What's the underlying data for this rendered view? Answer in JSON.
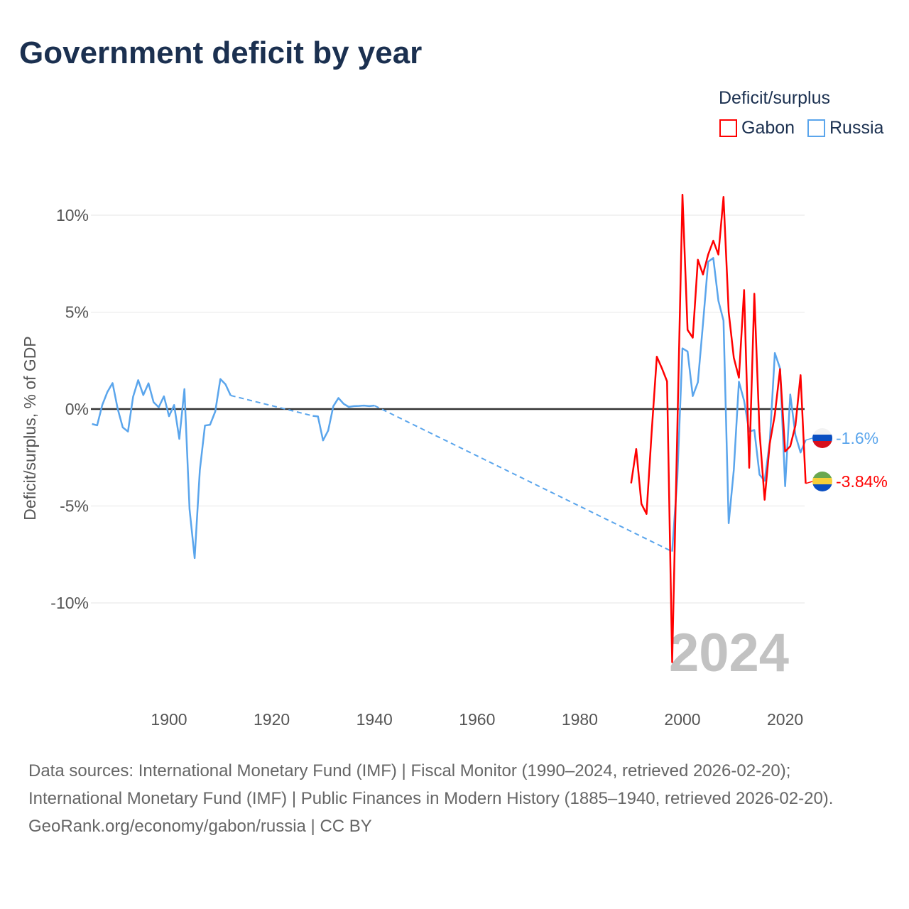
{
  "title": "Government deficit by year",
  "legend": {
    "title": "Deficit/surplus",
    "items": [
      {
        "label": "Gabon",
        "color": "#ff0000"
      },
      {
        "label": "Russia",
        "color": "#5aa5ec"
      }
    ]
  },
  "year_label": "2024",
  "end_labels": {
    "russia": "-1.6%",
    "gabon": "-3.84%"
  },
  "footer": {
    "sources": "Data sources: International Monetary Fund (IMF) | Fiscal Monitor (1990–2024, retrieved 2026-02-20); International Monetary Fund (IMF) | Public Finances in Modern History (1885–1940, retrieved 2026-02-20).",
    "credit": "GeoRank.org/economy/gabon/russia | CC BY"
  },
  "chart_data": {
    "type": "line",
    "title": "Government deficit by year",
    "xlabel": "",
    "ylabel": "Deficit/surplus, % of GDP",
    "xlim": [
      1885,
      2024
    ],
    "ylim": [
      -13.5,
      11.5
    ],
    "grid": true,
    "legend_position": "top-right",
    "xticks": [
      "1900",
      "1920",
      "1940",
      "1960",
      "1980",
      "2000",
      "2020"
    ],
    "yticks": [
      {
        "value": 10,
        "label": "10%"
      },
      {
        "value": 5,
        "label": "5%"
      },
      {
        "value": 0,
        "label": "0%"
      },
      {
        "value": -5,
        "label": "-5%"
      },
      {
        "value": -10,
        "label": "-10%"
      }
    ],
    "series": [
      {
        "name": "Russia",
        "color": "#5aa5ec",
        "points": [
          [
            1885,
            -0.77
          ],
          [
            1886,
            -0.84
          ],
          [
            1887,
            0.21
          ],
          [
            1888,
            0.88
          ],
          [
            1889,
            1.34
          ],
          [
            1890,
            0.02
          ],
          [
            1891,
            -0.95
          ],
          [
            1892,
            -1.16
          ],
          [
            1893,
            0.63
          ],
          [
            1894,
            1.49
          ],
          [
            1895,
            0.72
          ],
          [
            1896,
            1.33
          ],
          [
            1897,
            0.35
          ],
          [
            1898,
            0.09
          ],
          [
            1899,
            0.66
          ],
          [
            1900,
            -0.37
          ],
          [
            1901,
            0.21
          ],
          [
            1902,
            -1.54
          ],
          [
            1903,
            1.03
          ],
          [
            1904,
            -5.16
          ],
          [
            1905,
            -7.69
          ],
          [
            1906,
            -3.15
          ],
          [
            1907,
            -0.85
          ],
          [
            1908,
            -0.81
          ],
          [
            1909,
            -0.13
          ],
          [
            1910,
            1.55
          ],
          [
            1911,
            1.28
          ],
          [
            1912,
            0.7
          ],
          [
            1928,
            -0.35
          ],
          [
            1929,
            -0.38
          ],
          [
            1930,
            -1.62
          ],
          [
            1931,
            -1.11
          ],
          [
            1932,
            0.15
          ],
          [
            1933,
            0.57
          ],
          [
            1934,
            0.27
          ],
          [
            1935,
            0.11
          ],
          [
            1936,
            0.15
          ],
          [
            1937,
            0.16
          ],
          [
            1938,
            0.18
          ],
          [
            1939,
            0.15
          ],
          [
            1940,
            0.18
          ],
          [
            1998,
            -7.35
          ],
          [
            1999,
            -3.54
          ],
          [
            2000,
            3.13
          ],
          [
            2001,
            2.97
          ],
          [
            2002,
            0.67
          ],
          [
            2003,
            1.38
          ],
          [
            2004,
            4.4
          ],
          [
            2005,
            7.6
          ],
          [
            2006,
            7.79
          ],
          [
            2007,
            5.59
          ],
          [
            2008,
            4.56
          ],
          [
            2009,
            -5.89
          ],
          [
            2010,
            -3.14
          ],
          [
            2011,
            1.41
          ],
          [
            2012,
            0.43
          ],
          [
            2013,
            -1.16
          ],
          [
            2014,
            -1.08
          ],
          [
            2015,
            -3.38
          ],
          [
            2016,
            -3.7
          ],
          [
            2017,
            -1.71
          ],
          [
            2018,
            2.89
          ],
          [
            2019,
            2.1
          ],
          [
            2020,
            -3.98
          ],
          [
            2021,
            0.75
          ],
          [
            2022,
            -1.35
          ],
          [
            2023,
            -2.24
          ],
          [
            2024,
            -1.6
          ]
        ]
      },
      {
        "name": "Gabon",
        "color": "#ff0000",
        "points": [
          [
            1990,
            -3.83
          ],
          [
            1991,
            -2.06
          ],
          [
            1992,
            -4.89
          ],
          [
            1993,
            -5.41
          ],
          [
            1994,
            -1.2
          ],
          [
            1995,
            2.7
          ],
          [
            1996,
            2.1
          ],
          [
            1997,
            1.43
          ],
          [
            1998,
            -13.06
          ],
          [
            1999,
            -1.0
          ],
          [
            2000,
            11.06
          ],
          [
            2001,
            4.08
          ],
          [
            2002,
            3.68
          ],
          [
            2003,
            7.7
          ],
          [
            2004,
            6.94
          ],
          [
            2005,
            7.97
          ],
          [
            2006,
            8.68
          ],
          [
            2007,
            7.97
          ],
          [
            2008,
            10.94
          ],
          [
            2009,
            5.0
          ],
          [
            2010,
            2.65
          ],
          [
            2011,
            1.62
          ],
          [
            2012,
            6.14
          ],
          [
            2013,
            -3.03
          ],
          [
            2014,
            5.95
          ],
          [
            2015,
            -1.16
          ],
          [
            2016,
            -4.68
          ],
          [
            2017,
            -1.79
          ],
          [
            2018,
            -0.29
          ],
          [
            2019,
            2.06
          ],
          [
            2020,
            -2.19
          ],
          [
            2021,
            -1.92
          ],
          [
            2022,
            -0.84
          ],
          [
            2023,
            1.75
          ],
          [
            2024,
            -3.84
          ]
        ]
      }
    ]
  }
}
